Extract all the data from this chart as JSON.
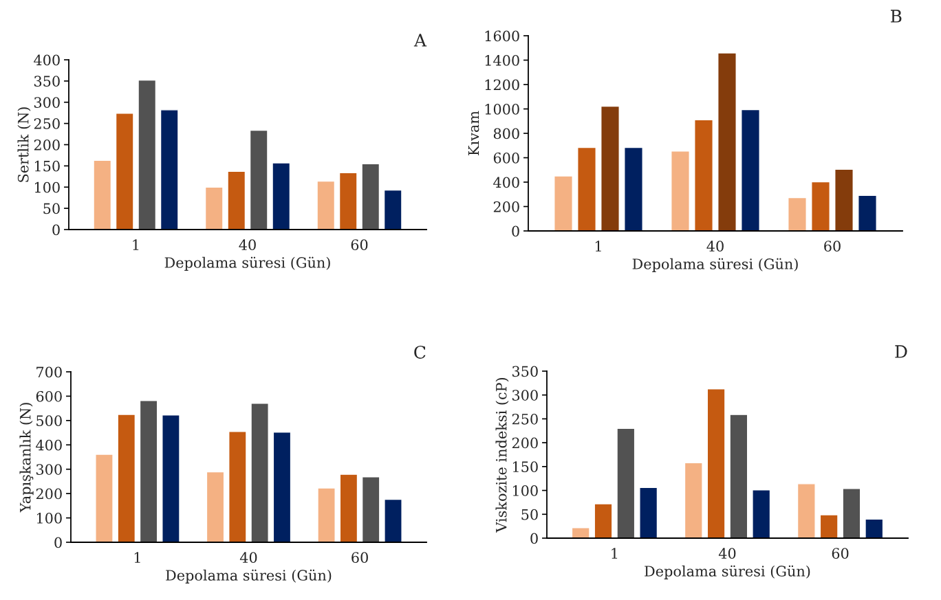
{
  "chart_data": [
    {
      "type": "bar",
      "title": "A",
      "xlabel": "Depolama süresi (Gün)",
      "ylabel": "Sertlik (N)",
      "categories": [
        "1",
        "40",
        "60"
      ],
      "ylim": [
        0,
        400
      ],
      "yticks": [
        0,
        50,
        100,
        150,
        200,
        250,
        300,
        350,
        400
      ],
      "series": [
        {
          "color": "#f4b183",
          "values": [
            163,
            100,
            114
          ]
        },
        {
          "color": "#c55a11",
          "values": [
            274,
            137,
            134
          ]
        },
        {
          "color": "#525252",
          "values": [
            352,
            234,
            155
          ]
        },
        {
          "color": "#002060",
          "values": [
            282,
            157,
            93
          ]
        }
      ]
    },
    {
      "type": "bar",
      "title": "B",
      "xlabel": "Depolama süresi (Gün)",
      "ylabel": "Kıvam",
      "categories": [
        "1",
        "40",
        "60"
      ],
      "ylim": [
        0,
        1600
      ],
      "yticks": [
        0,
        200,
        400,
        600,
        800,
        1000,
        1200,
        1400,
        1600
      ],
      "series": [
        {
          "color": "#f4b183",
          "values": [
            451,
            654,
            273
          ]
        },
        {
          "color": "#c55a11",
          "values": [
            684,
            911,
            402
          ]
        },
        {
          "color": "#843c0c",
          "values": [
            1022,
            1459,
            506
          ]
        },
        {
          "color": "#002060",
          "values": [
            684,
            994,
            291
          ]
        }
      ]
    },
    {
      "type": "bar",
      "title": "C",
      "xlabel": "Depolama süresi (Gün)",
      "ylabel": "Yapışkanlık (N)",
      "categories": [
        "1",
        "40",
        "60"
      ],
      "ylim": [
        0,
        700
      ],
      "yticks": [
        0,
        100,
        200,
        300,
        400,
        500,
        600,
        700
      ],
      "series": [
        {
          "color": "#f4b183",
          "values": [
            361,
            289,
            223
          ]
        },
        {
          "color": "#c55a11",
          "values": [
            525,
            455,
            279
          ]
        },
        {
          "color": "#525252",
          "values": [
            582,
            571,
            269
          ]
        },
        {
          "color": "#002060",
          "values": [
            523,
            452,
            176
          ]
        }
      ]
    },
    {
      "type": "bar",
      "title": "D",
      "xlabel": "Depolama süresi (Gün)",
      "ylabel": "Viskozite indeksi (cP)",
      "categories": [
        "1",
        "40",
        "60"
      ],
      "ylim": [
        0,
        350
      ],
      "yticks": [
        0,
        50,
        100,
        150,
        200,
        250,
        300,
        350
      ],
      "series": [
        {
          "color": "#f4b183",
          "values": [
            22,
            158,
            114
          ]
        },
        {
          "color": "#c55a11",
          "values": [
            72,
            313,
            49
          ]
        },
        {
          "color": "#525252",
          "values": [
            230,
            259,
            104
          ]
        },
        {
          "color": "#002060",
          "values": [
            106,
            101,
            40
          ]
        }
      ]
    }
  ]
}
